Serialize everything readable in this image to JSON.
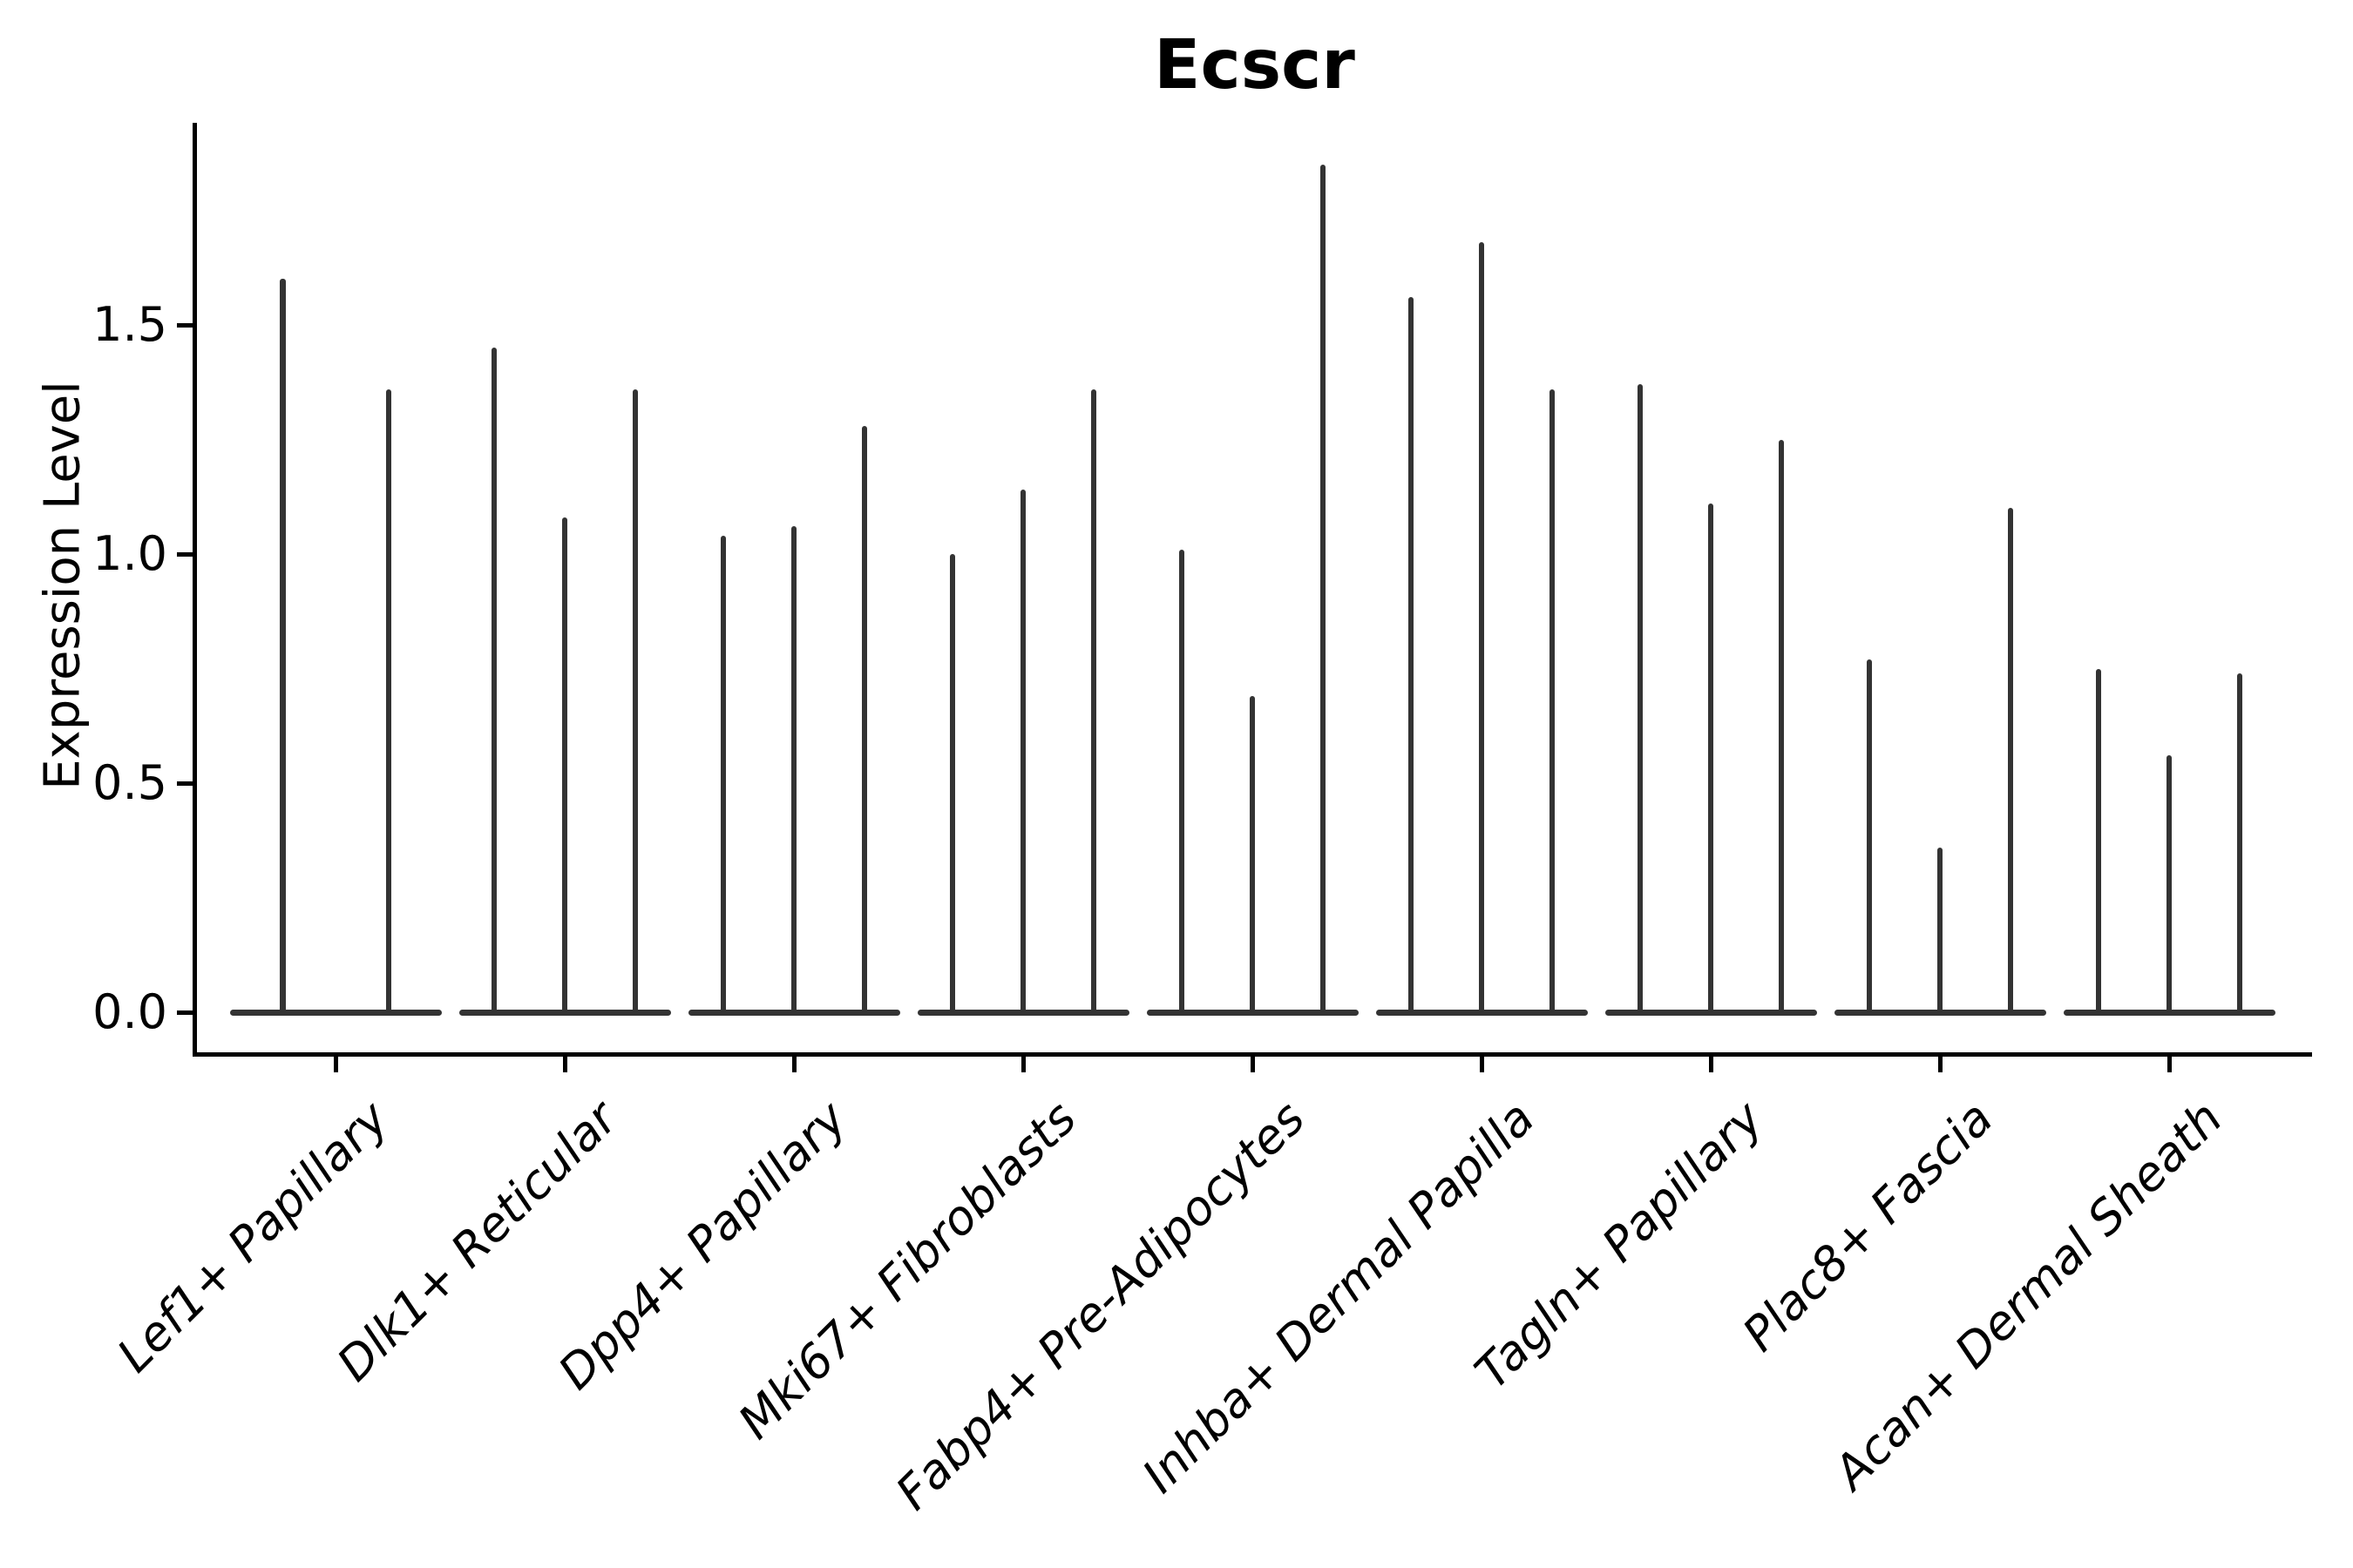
{
  "title": "Ecscr",
  "y_axis": {
    "label": "Expression Level",
    "tick_labels": [
      "0.0",
      "0.5",
      "1.0",
      "1.5"
    ],
    "tick_values": [
      0.0,
      0.5,
      1.0,
      1.5
    ]
  },
  "colors": {
    "violin_line": "#333333",
    "spine": "#000000",
    "text": "#000000",
    "background": "#ffffff"
  },
  "chart_data": {
    "type": "violin",
    "title": "Ecscr",
    "xlabel": "",
    "ylabel": "Expression Level",
    "ylim": [
      -0.09,
      1.94
    ],
    "grid": false,
    "legend": "none",
    "description": "Needle-thin violins: bulk of cells at expression 0 (flat base lens), thin spike up to the maximum expression value. Peaks listed per violin within each category.",
    "categories": [
      "Lef1+ Papillary",
      "Dlk1+ Reticular",
      "Dpp4+ Papillary",
      "Mki67+ Fibroblasts",
      "Fabp4+ Pre-Adipocytes",
      "Inhba+ Dermal Papilla",
      "Tagln+ Papillary",
      "Plac8+ Fascia",
      "Acan+ Dermal Sheath"
    ],
    "groups": [
      {
        "category": "Lef1+ Papillary",
        "peaks": [
          1.6,
          1.36
        ]
      },
      {
        "category": "Dlk1+ Reticular",
        "peaks": [
          1.45,
          1.08,
          1.36
        ]
      },
      {
        "category": "Dpp4+ Papillary",
        "peaks": [
          1.04,
          1.06,
          1.28
        ]
      },
      {
        "category": "Mki67+ Fibroblasts",
        "peaks": [
          1.0,
          1.14,
          1.36
        ]
      },
      {
        "category": "Fabp4+ Pre-Adipocytes",
        "peaks": [
          1.01,
          0.69,
          1.85
        ]
      },
      {
        "category": "Inhba+ Dermal Papilla",
        "peaks": [
          1.56,
          1.68,
          1.36
        ]
      },
      {
        "category": "Tagln+ Papillary",
        "peaks": [
          1.37,
          1.11,
          1.25
        ]
      },
      {
        "category": "Plac8+ Fascia",
        "peaks": [
          0.77,
          0.36,
          1.1
        ]
      },
      {
        "category": "Acan+ Dermal Sheath",
        "peaks": [
          0.75,
          0.56,
          0.74
        ]
      }
    ]
  }
}
